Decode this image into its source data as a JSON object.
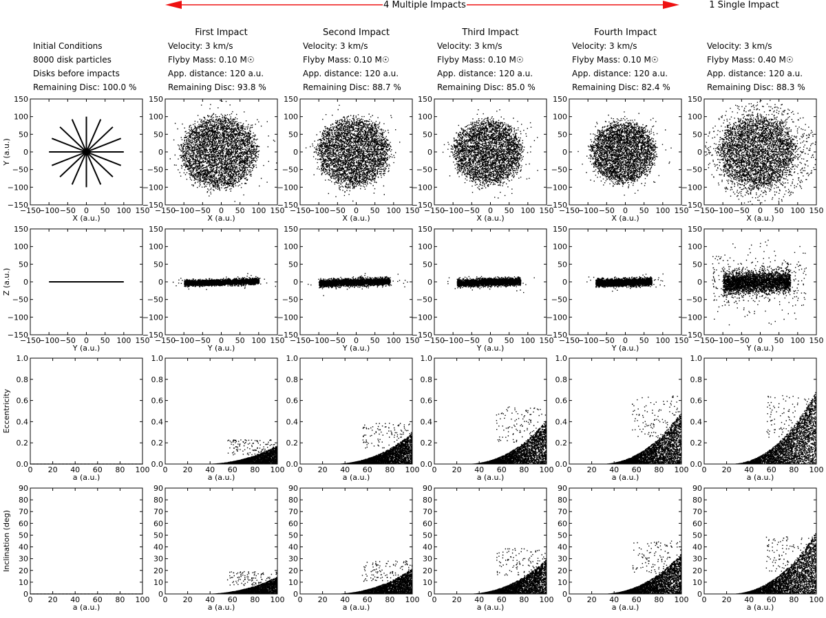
{
  "header": {
    "multiple_label": "4 Multiple Impacts",
    "single_label": "1 Single Impact",
    "arrow_color": "#ee1111"
  },
  "columns": [
    {
      "title": "",
      "lines": [
        "Initial Conditions",
        "8000 disk particles",
        "Disks before impacts",
        "Remaining Disc: 100.0 %"
      ]
    },
    {
      "title": "First Impact",
      "lines": [
        "Velocity: 3 km/s",
        "Flyby Mass: 0.10 M☉",
        "App. distance: 120 a.u.",
        "Remaining Disc: 93.8 %"
      ]
    },
    {
      "title": "Second Impact",
      "lines": [
        "Velocity: 3 km/s",
        "Flyby Mass: 0.10 M☉",
        "App. distance: 120 a.u.",
        "Remaining Disc: 88.7 %"
      ]
    },
    {
      "title": "Third Impact",
      "lines": [
        "Velocity: 3 km/s",
        "Flyby Mass: 0.10 M☉",
        "App. distance: 120 a.u.",
        "Remaining Disc: 85.0 %"
      ]
    },
    {
      "title": "Fourth Impact",
      "lines": [
        "Velocity: 3 km/s",
        "Flyby Mass: 0.10 M☉",
        "App. distance: 120 a.u.",
        "Remaining Disc: 82.4 %"
      ]
    },
    {
      "title": "",
      "lines": [
        "Velocity: 3 km/s",
        "Flyby Mass: 0.40 M☉",
        "App. distance: 120 a.u.",
        "Remaining Disc: 88.3 %"
      ]
    }
  ],
  "chart_data": [
    {
      "row": "xy",
      "type": "scatter",
      "xlabel": "X (a.u.)",
      "ylabel": "Y (a.u.)",
      "xlim": [
        -150,
        150
      ],
      "ylim": [
        -150,
        150
      ],
      "xticks": [
        -150,
        -100,
        -50,
        0,
        50,
        100,
        150
      ],
      "yticks": [
        -150,
        -100,
        -50,
        0,
        50,
        100,
        150
      ],
      "initial": "16 radial spokes of particles from r = 0 to r = 100",
      "panels": [
        {
          "column": 0,
          "remaining_fraction": 1.0,
          "max_radius": 100
        },
        {
          "column": 1,
          "remaining_fraction": 0.938,
          "max_radius": 100
        },
        {
          "column": 2,
          "remaining_fraction": 0.887,
          "max_radius": 95
        },
        {
          "column": 3,
          "remaining_fraction": 0.85,
          "max_radius": 90
        },
        {
          "column": 4,
          "remaining_fraction": 0.824,
          "max_radius": 85
        },
        {
          "column": 5,
          "remaining_fraction": 0.883,
          "max_radius": 100
        }
      ]
    },
    {
      "row": "yz",
      "type": "scatter",
      "xlabel": "Y (a.u.)",
      "ylabel": "Z (a.u.)",
      "xlim": [
        -150,
        150
      ],
      "ylim": [
        -150,
        150
      ],
      "xticks": [
        -150,
        -100,
        -50,
        0,
        50,
        100,
        150
      ],
      "yticks": [
        -150,
        -100,
        -50,
        0,
        50,
        100,
        150
      ],
      "initial": "flat line from Y = -100 to Y = 100 at Z = 0",
      "panels": [
        {
          "column": 0,
          "y_range": [
            -100,
            100
          ],
          "z_spread": 0
        },
        {
          "column": 1,
          "y_range": [
            -100,
            100
          ],
          "z_spread": 8
        },
        {
          "column": 2,
          "y_range": [
            -100,
            90
          ],
          "z_spread": 10
        },
        {
          "column": 3,
          "y_range": [
            -90,
            80
          ],
          "z_spread": 10
        },
        {
          "column": 4,
          "y_range": [
            -80,
            70
          ],
          "z_spread": 10
        },
        {
          "column": 5,
          "y_range": [
            -100,
            80
          ],
          "z_spread": 30
        }
      ]
    },
    {
      "row": "ecc",
      "type": "scatter",
      "xlabel": "a (a.u.)",
      "ylabel": "Eccentricity",
      "xlim": [
        0,
        100
      ],
      "ylim": [
        0,
        1.0
      ],
      "xticks": [
        0,
        20,
        40,
        60,
        80,
        100
      ],
      "yticks": [
        0.0,
        0.2,
        0.4,
        0.6,
        0.8,
        1.0
      ],
      "panels": [
        {
          "column": 0,
          "max_value_at_a100": 0.0,
          "onset_a": 100
        },
        {
          "column": 1,
          "max_value_at_a100": 0.18,
          "onset_a": 30
        },
        {
          "column": 2,
          "max_value_at_a100": 0.3,
          "onset_a": 25
        },
        {
          "column": 3,
          "max_value_at_a100": 0.42,
          "onset_a": 25
        },
        {
          "column": 4,
          "max_value_at_a100": 0.5,
          "onset_a": 25
        },
        {
          "column": 5,
          "max_value_at_a100": 0.5,
          "onset_a": 20
        }
      ]
    },
    {
      "row": "inc",
      "type": "scatter",
      "xlabel": "a (a.u.)",
      "ylabel": "Inclination (deg)",
      "xlim": [
        0,
        100
      ],
      "ylim": [
        0,
        90
      ],
      "xticks": [
        0,
        20,
        40,
        60,
        80,
        100
      ],
      "yticks": [
        0,
        10,
        20,
        30,
        40,
        50,
        60,
        70,
        80,
        90
      ],
      "panels": [
        {
          "column": 0,
          "max_value_at_a100": 0,
          "onset_a": 100
        },
        {
          "column": 1,
          "max_value_at_a100": 15,
          "onset_a": 30
        },
        {
          "column": 2,
          "max_value_at_a100": 22,
          "onset_a": 25
        },
        {
          "column": 3,
          "max_value_at_a100": 30,
          "onset_a": 25
        },
        {
          "column": 4,
          "max_value_at_a100": 35,
          "onset_a": 25
        },
        {
          "column": 5,
          "max_value_at_a100": 38,
          "onset_a": 20
        }
      ]
    }
  ]
}
